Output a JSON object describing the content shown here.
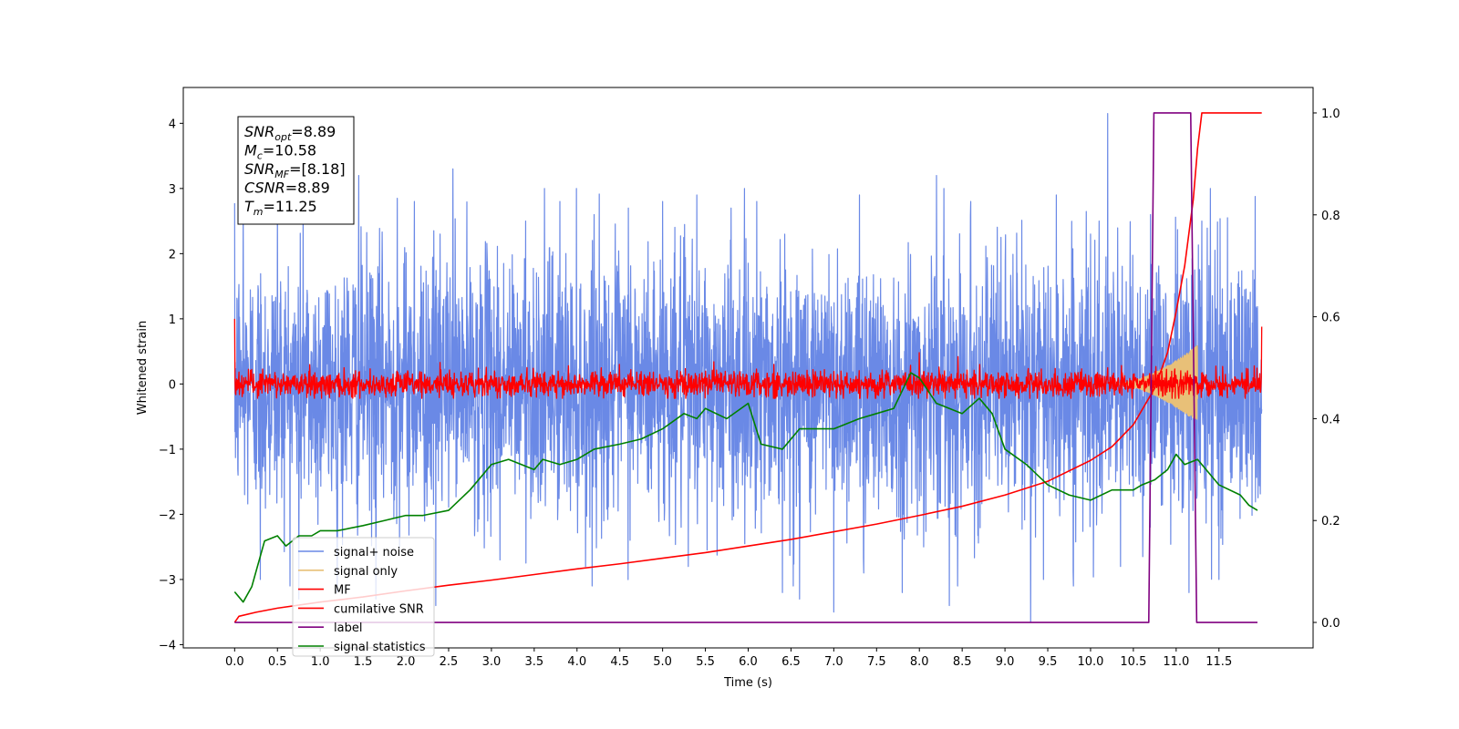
{
  "chart_data": {
    "type": "line",
    "xlabel": "Time (s)",
    "ylabel_left": "Whitened strain",
    "ylabel_right": "",
    "xlim": [
      -0.6,
      12.6
    ],
    "ylim_left": [
      -4.05,
      4.55
    ],
    "ylim_right": [
      -0.05,
      1.05
    ],
    "x_ticks": [
      0.0,
      0.5,
      1.0,
      1.5,
      2.0,
      2.5,
      3.0,
      3.5,
      4.0,
      4.5,
      5.0,
      5.5,
      6.0,
      6.5,
      7.0,
      7.5,
      8.0,
      8.5,
      9.0,
      9.5,
      10.0,
      10.5,
      11.0,
      11.5
    ],
    "x_tick_labels": [
      "0.0",
      "0.5",
      "1.0",
      "1.5",
      "2.0",
      "2.5",
      "3.0",
      "3.5",
      "4.0",
      "4.5",
      "5.0",
      "5.5",
      "6.0",
      "6.5",
      "7.0",
      "7.5",
      "8.0",
      "8.5",
      "9.0",
      "9.5",
      "10.0",
      "10.5",
      "11.0",
      "11.5"
    ],
    "y_left_ticks": [
      -4,
      -3,
      -2,
      -1,
      0,
      1,
      2,
      3,
      4
    ],
    "y_left_tick_labels": [
      "−4",
      "−3",
      "−2",
      "−1",
      "0",
      "1",
      "2",
      "3",
      "4"
    ],
    "y_right_ticks": [
      0.0,
      0.2,
      0.4,
      0.6,
      0.8,
      1.0
    ],
    "y_right_tick_labels": [
      "0.0",
      "0.2",
      "0.4",
      "0.6",
      "0.8",
      "1.0"
    ],
    "grid": false,
    "legend_position": "lower-left",
    "annotation": {
      "lines": [
        {
          "base": "SNR",
          "sub": "opt",
          "value": "=8.89"
        },
        {
          "base": "M",
          "sub": "c",
          "value": "=10.58"
        },
        {
          "base": "SNR",
          "sub": "MF",
          "value": "=[8.18]"
        },
        {
          "base": "CSNR",
          "sub": "",
          "value": "=8.89"
        },
        {
          "base": "T",
          "sub": "m",
          "value": "=11.25"
        }
      ]
    },
    "series": [
      {
        "name": "signal+ noise",
        "axis": "left",
        "color": "#6a89e6",
        "kind": "noise",
        "duration": 12.0,
        "sigma": 1.0,
        "peaks_x": [
          0.1,
          0.3,
          0.5,
          0.8,
          1.2,
          1.45,
          1.9,
          2.1,
          2.4,
          2.55,
          3.1,
          3.4,
          3.8,
          4.2,
          4.6,
          5.0,
          5.4,
          5.8,
          6.1,
          6.6,
          7.0,
          7.3,
          7.8,
          8.2,
          8.6,
          9.3,
          9.6,
          10.1,
          10.2,
          10.7,
          11.3,
          11.4,
          11.6
        ],
        "peaks_y": [
          2.7,
          2.6,
          2.8,
          3.0,
          2.9,
          3.2,
          2.85,
          2.8,
          2.3,
          3.3,
          2.7,
          2.5,
          2.8,
          2.6,
          2.7,
          2.8,
          2.9,
          2.7,
          2.8,
          2.5,
          2.7,
          2.9,
          2.6,
          3.2,
          2.8,
          2.8,
          2.9,
          2.5,
          4.15,
          2.6,
          2.5,
          3.0,
          2.55
        ],
        "troughs_x": [
          0.3,
          0.75,
          1.2,
          1.65,
          2.35,
          3.1,
          4.1,
          5.3,
          6.4,
          6.6,
          7.0,
          7.35,
          7.8,
          8.05,
          8.35,
          9.3,
          9.45,
          9.8,
          10.35,
          11.15,
          11.5
        ],
        "troughs_y": [
          -3.0,
          -3.3,
          -3.2,
          -3.3,
          -3.4,
          -2.7,
          -2.8,
          -2.8,
          -3.2,
          -3.3,
          -3.5,
          -2.9,
          -3.2,
          -2.5,
          -3.4,
          -3.65,
          -3.0,
          -3.1,
          -2.8,
          -3.2,
          -3.0
        ]
      },
      {
        "name": "signal only",
        "axis": "left",
        "color": "#e8c078",
        "kind": "chirp",
        "start": 10.3,
        "end": 11.25,
        "max_amplitude": 0.6
      },
      {
        "name": "MF",
        "axis": "left",
        "color": "#ff0000",
        "kind": "filter",
        "duration": 12.0,
        "sigma": 0.1,
        "start_value": 1.0,
        "end_value": 0.88,
        "peaks_x": [
          8.0,
          8.45,
          2.4,
          3.9,
          5.6,
          6.3
        ],
        "peaks_y": [
          0.48,
          0.42,
          0.33,
          0.28,
          0.34,
          0.3
        ]
      },
      {
        "name": "cumilative SNR",
        "axis": "right",
        "color": "#ff0000",
        "kind": "curve",
        "x": [
          0.0,
          0.05,
          0.25,
          0.5,
          1.0,
          1.5,
          2.0,
          2.5,
          3.0,
          3.5,
          4.0,
          4.5,
          5.0,
          5.5,
          6.0,
          6.5,
          7.0,
          7.5,
          8.0,
          8.5,
          9.0,
          9.5,
          10.0,
          10.25,
          10.5,
          10.75,
          10.9,
          11.0,
          11.1,
          11.2,
          11.25,
          11.3,
          12.0
        ],
        "y": [
          0.0,
          0.012,
          0.02,
          0.028,
          0.04,
          0.05,
          0.062,
          0.073,
          0.083,
          0.094,
          0.105,
          0.115,
          0.126,
          0.137,
          0.15,
          0.163,
          0.178,
          0.193,
          0.21,
          0.228,
          0.25,
          0.277,
          0.318,
          0.345,
          0.388,
          0.46,
          0.53,
          0.61,
          0.7,
          0.83,
          0.93,
          1.0,
          1.0
        ]
      },
      {
        "name": "label",
        "axis": "right",
        "color": "#800080",
        "kind": "step",
        "x": [
          0.0,
          10.68,
          10.74,
          11.17,
          11.24,
          11.95
        ],
        "y": [
          0.0,
          0.0,
          1.0,
          1.0,
          0.0,
          0.0
        ]
      },
      {
        "name": "signal statistics",
        "axis": "right",
        "color": "#008000",
        "kind": "curve",
        "x": [
          0.0,
          0.1,
          0.2,
          0.35,
          0.5,
          0.6,
          0.75,
          0.9,
          1.0,
          1.2,
          1.5,
          1.75,
          2.0,
          2.2,
          2.5,
          2.75,
          3.0,
          3.2,
          3.5,
          3.6,
          3.8,
          4.0,
          4.2,
          4.5,
          4.75,
          5.0,
          5.25,
          5.4,
          5.5,
          5.75,
          6.0,
          6.15,
          6.4,
          6.6,
          6.8,
          7.0,
          7.3,
          7.5,
          7.7,
          7.9,
          8.0,
          8.2,
          8.5,
          8.7,
          8.85,
          9.0,
          9.25,
          9.5,
          9.75,
          10.0,
          10.25,
          10.5,
          10.6,
          10.75,
          10.9,
          11.0,
          11.1,
          11.25,
          11.5,
          11.75,
          11.85,
          11.95
        ],
        "y": [
          0.06,
          0.04,
          0.07,
          0.16,
          0.17,
          0.15,
          0.17,
          0.17,
          0.18,
          0.18,
          0.19,
          0.2,
          0.21,
          0.21,
          0.22,
          0.26,
          0.31,
          0.32,
          0.3,
          0.32,
          0.31,
          0.32,
          0.34,
          0.35,
          0.36,
          0.38,
          0.41,
          0.4,
          0.42,
          0.4,
          0.43,
          0.35,
          0.34,
          0.38,
          0.38,
          0.38,
          0.4,
          0.41,
          0.42,
          0.49,
          0.48,
          0.43,
          0.41,
          0.44,
          0.41,
          0.34,
          0.31,
          0.27,
          0.25,
          0.24,
          0.26,
          0.26,
          0.27,
          0.28,
          0.3,
          0.33,
          0.31,
          0.32,
          0.27,
          0.25,
          0.23,
          0.22
        ]
      }
    ]
  }
}
